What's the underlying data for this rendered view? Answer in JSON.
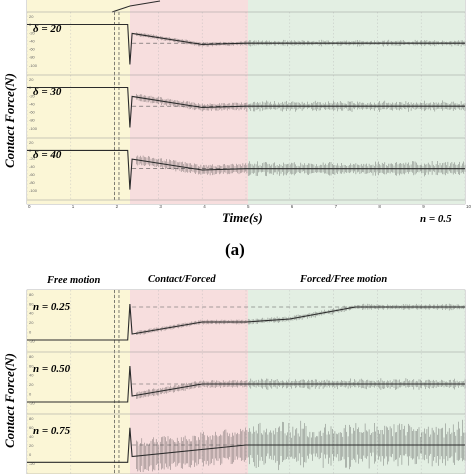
{
  "colors": {
    "free": "#fbf6d6",
    "contact": "#f7dede",
    "forced": "#e3efe3",
    "trace": "#2b2b2b",
    "dashed": "#555555",
    "grid": "#b8b8b8"
  },
  "chart_data": [
    {
      "type": "line",
      "panel": "a",
      "ylabel": "Contact Force(N)",
      "xlabel": "Time(s)",
      "corner_note": "n = 0.5",
      "caption": "(a)",
      "xlim": [
        0,
        10
      ],
      "x_ticks": [
        "0",
        "1",
        "2",
        "3",
        "4",
        "5",
        "6",
        "7",
        "8",
        "9",
        "10"
      ],
      "y_ticks": [
        "20",
        "0",
        "-20",
        "-40",
        "-60",
        "-80",
        "-100"
      ],
      "regions": [
        {
          "phase": "free",
          "start": 0,
          "end": 2.35
        },
        {
          "phase": "contact",
          "start": 2.35,
          "end": 5
        },
        {
          "phase": "forced",
          "start": 5,
          "end": 10
        }
      ],
      "series": [
        {
          "name": "δ = 20",
          "values": [
            [
              0,
              0
            ],
            [
              2.3,
              0
            ],
            [
              2.35,
              -90
            ],
            [
              2.4,
              -20
            ],
            [
              4,
              -45
            ],
            [
              5,
              -42
            ],
            [
              10,
              -42
            ]
          ]
        },
        {
          "name": "δ = 30",
          "values": [
            [
              0,
              0
            ],
            [
              2.3,
              0
            ],
            [
              2.35,
              -90
            ],
            [
              2.4,
              -20
            ],
            [
              4,
              -45
            ],
            [
              5,
              -42
            ],
            [
              10,
              -42
            ]
          ]
        },
        {
          "name": "δ = 40",
          "values": [
            [
              0,
              0
            ],
            [
              2.3,
              0
            ],
            [
              2.35,
              -90
            ],
            [
              2.4,
              -20
            ],
            [
              4,
              -45
            ],
            [
              5,
              -42
            ],
            [
              10,
              -42
            ]
          ]
        }
      ]
    },
    {
      "type": "line",
      "panel": "b",
      "ylabel": "Contact Force(N)",
      "phase_labels": [
        "Free motion",
        "Contact/Forced",
        "Forced/Free motion"
      ],
      "xlim": [
        0,
        10
      ],
      "y_ticks": [
        "80",
        "60",
        "40",
        "20",
        "0",
        "-20"
      ],
      "regions": [
        {
          "phase": "free",
          "start": 0,
          "end": 2.35
        },
        {
          "phase": "contact",
          "start": 2.35,
          "end": 5
        },
        {
          "phase": "forced",
          "start": 5,
          "end": 10
        }
      ],
      "series": [
        {
          "name": "n = 0.25",
          "values": [
            [
              0,
              0
            ],
            [
              2.3,
              0
            ],
            [
              2.35,
              60
            ],
            [
              2.4,
              10
            ],
            [
              4,
              30
            ],
            [
              5,
              30
            ],
            [
              6,
              35
            ],
            [
              7.5,
              55
            ],
            [
              10,
              55
            ]
          ]
        },
        {
          "name": "n = 0.50",
          "values": [
            [
              0,
              0
            ],
            [
              2.3,
              0
            ],
            [
              2.35,
              60
            ],
            [
              2.4,
              10
            ],
            [
              4,
              30
            ],
            [
              5,
              30
            ],
            [
              10,
              30
            ]
          ]
        },
        {
          "name": "n = 0.75",
          "values": [
            [
              0,
              0
            ],
            [
              2.3,
              0
            ],
            [
              2.35,
              60
            ],
            [
              2.4,
              10
            ],
            [
              5,
              30
            ],
            [
              10,
              30
            ]
          ]
        }
      ]
    }
  ]
}
